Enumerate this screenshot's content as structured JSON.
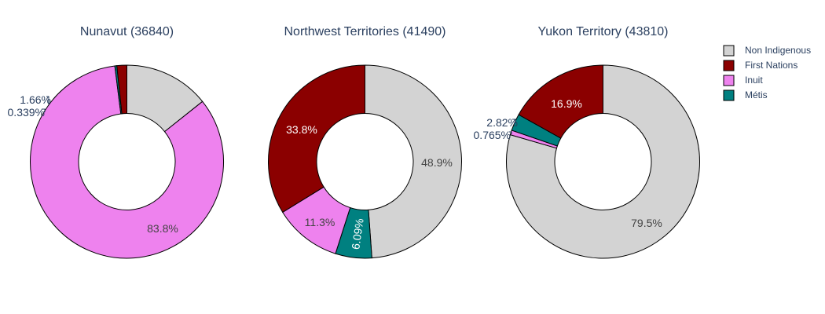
{
  "chart_data": {
    "type": "pie",
    "hole": true,
    "legend_placement": "top-right",
    "legend": [
      {
        "label": "Non Indigenous",
        "color": "#d3d3d3"
      },
      {
        "label": "First Nations",
        "color": "#8b0000"
      },
      {
        "label": "Inuit",
        "color": "#ee82ee"
      },
      {
        "label": "Métis",
        "color": "#008080"
      }
    ],
    "pies": [
      {
        "title": "Nunavut (36840)",
        "slices": [
          {
            "category": "Non Indigenous",
            "value": 14.3,
            "label": "14.3%"
          },
          {
            "category": "Inuit",
            "value": 83.8,
            "label": "83.8%"
          },
          {
            "category": "Métis",
            "value": 0.339,
            "label": "0.339%"
          },
          {
            "category": "First Nations",
            "value": 1.66,
            "label": "1.66%"
          }
        ]
      },
      {
        "title": "Northwest Territories (41490)",
        "slices": [
          {
            "category": "Non Indigenous",
            "value": 48.9,
            "label": "48.9%"
          },
          {
            "category": "Métis",
            "value": 6.09,
            "label": "6.09%"
          },
          {
            "category": "Inuit",
            "value": 11.3,
            "label": "11.3%"
          },
          {
            "category": "First Nations",
            "value": 33.8,
            "label": "33.8%"
          }
        ]
      },
      {
        "title": "Yukon Territory (43810)",
        "slices": [
          {
            "category": "Non Indigenous",
            "value": 79.5,
            "label": "79.5%"
          },
          {
            "category": "Inuit",
            "value": 0.765,
            "label": "0.765%"
          },
          {
            "category": "Métis",
            "value": 2.82,
            "label": "2.82%"
          },
          {
            "category": "First Nations",
            "value": 16.9,
            "label": "16.9%"
          }
        ]
      }
    ]
  }
}
